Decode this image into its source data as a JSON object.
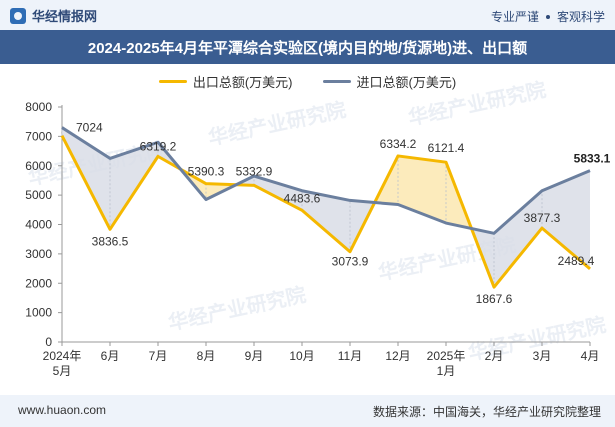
{
  "header": {
    "brand": "华经情报网",
    "tagline_left": "专业严谨",
    "tagline_right": "客观科学"
  },
  "title": "2024-2025年4月年平潭综合实验区(境内目的地/货源地)进、出口额",
  "footer": {
    "website": "www.huaon.com",
    "source": "数据来源：中国海关，华经产业研究院整理"
  },
  "watermark": "华经产业研究院",
  "colors": {
    "export": "#f5b800",
    "import": "#6b7f9e",
    "fill_export_higher": "#fbe7b0",
    "fill_import_higher": "#d9dde6"
  },
  "chart_data": {
    "type": "line",
    "title": "2024-2025年4月年平潭综合实验区(境内目的地/货源地)进、出口额",
    "categories": [
      "2024年5月",
      "6月",
      "7月",
      "8月",
      "9月",
      "10月",
      "11月",
      "12月",
      "2025年1月",
      "2月",
      "3月",
      "4月"
    ],
    "ylim": [
      0,
      8000
    ],
    "yticks": [
      0,
      1000,
      2000,
      3000,
      4000,
      5000,
      6000,
      7000,
      8000
    ],
    "series": [
      {
        "name": "出口总额(万美元)",
        "values": [
          7024,
          3836.5,
          6319.2,
          5390.3,
          5332.9,
          4483.6,
          3073.9,
          6334.2,
          6121.4,
          1867.6,
          3877.3,
          2489.4
        ],
        "labels": [
          "7024",
          "3836.5",
          "6319.2",
          "5390.3",
          "5332.9",
          "4483.6",
          "3073.9",
          "6334.2",
          "6121.4",
          "1867.6",
          "3877.3",
          "2489.4"
        ]
      },
      {
        "name": "进口总额(万美元)",
        "values": [
          7300,
          6250,
          6800,
          4850,
          5650,
          5150,
          4820,
          4680,
          4050,
          3700,
          5150,
          5833.1
        ],
        "labels": [
          "",
          "",
          "",
          "",
          "",
          "",
          "",
          "",
          "",
          "",
          "",
          "5833.1"
        ]
      }
    ]
  }
}
